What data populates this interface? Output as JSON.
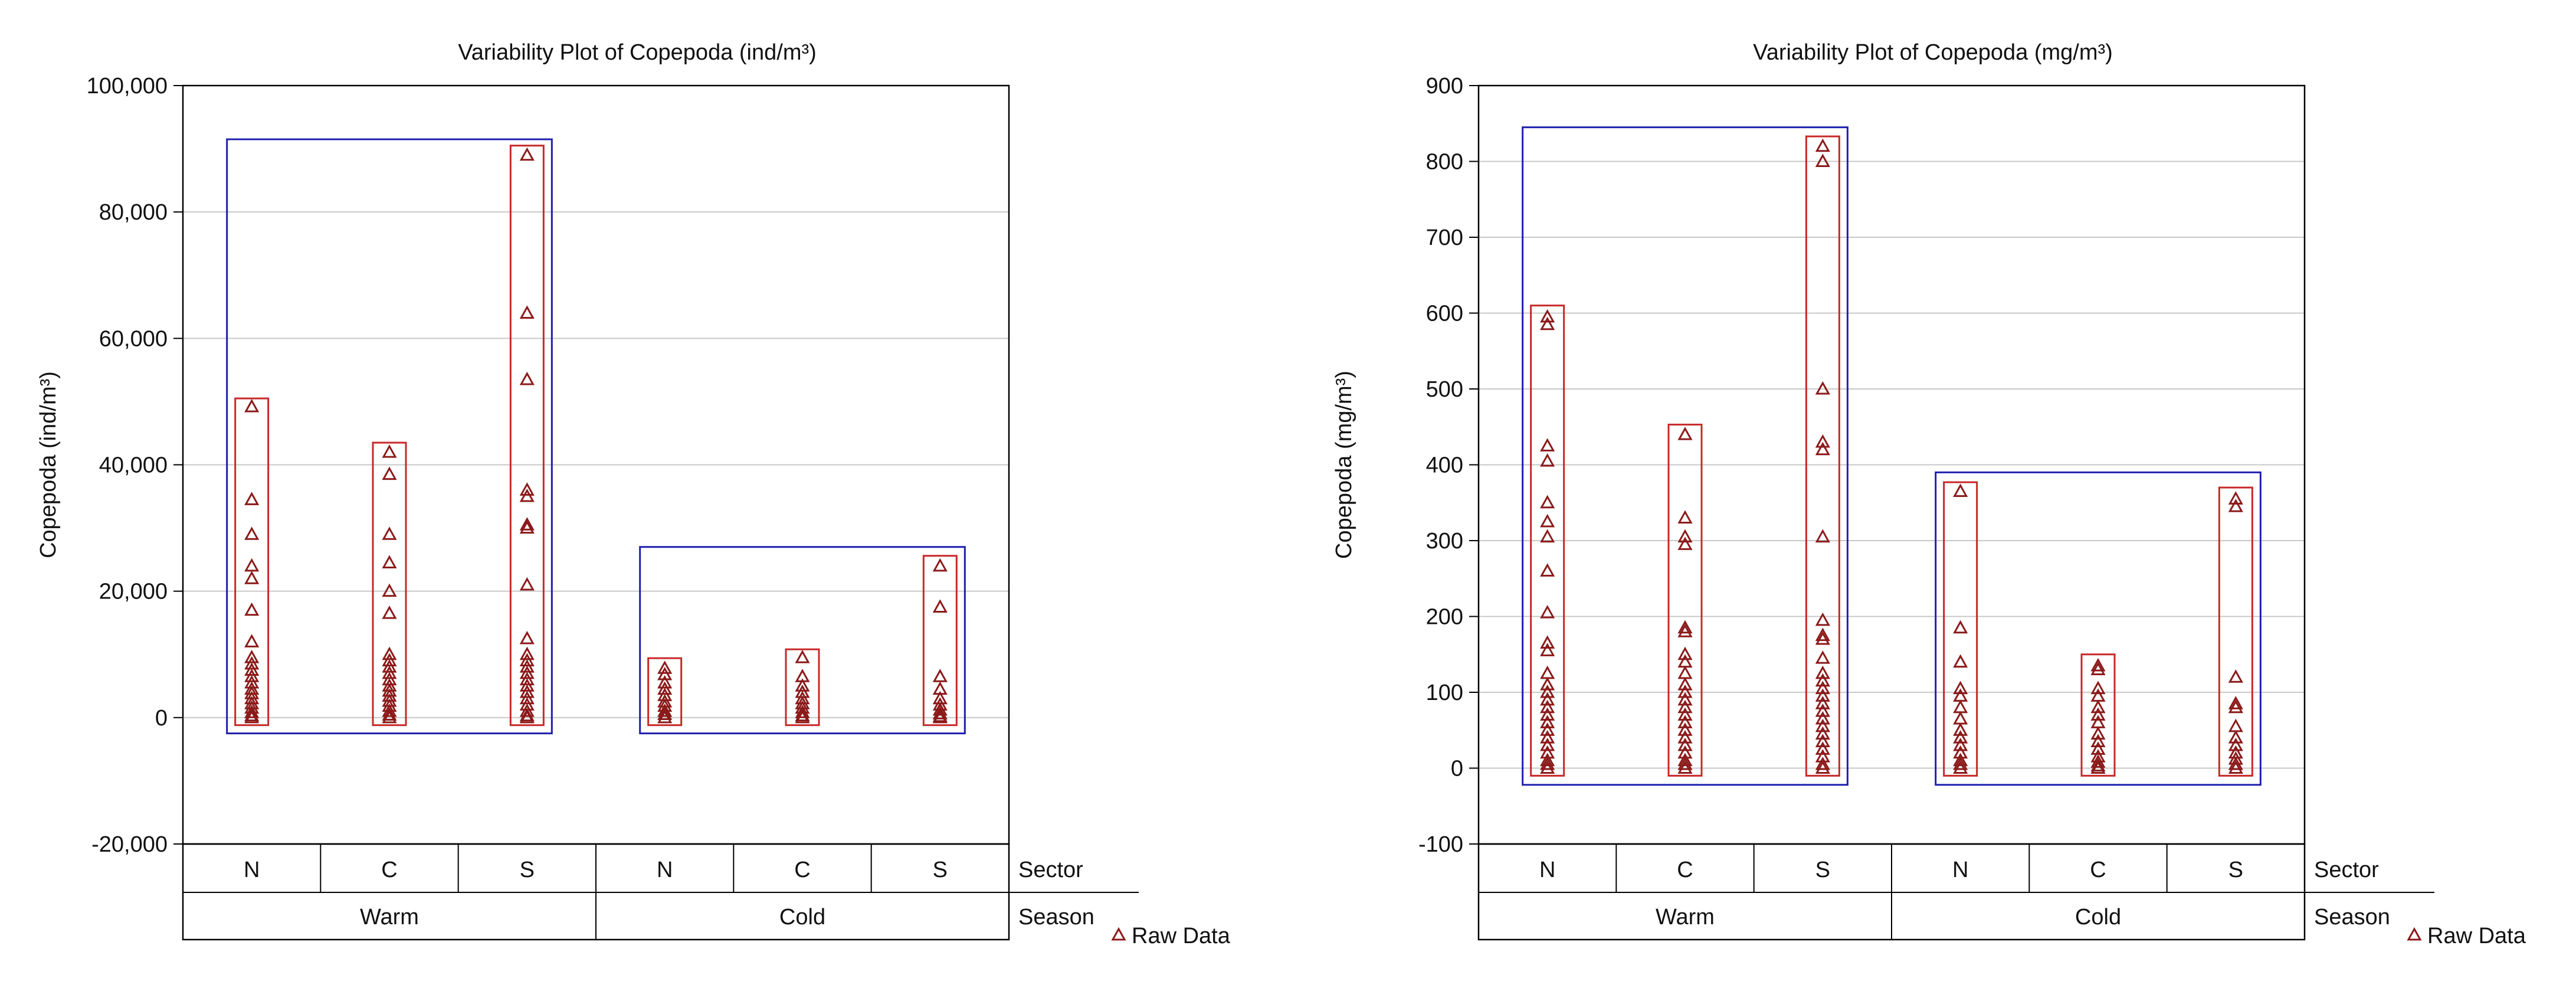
{
  "chart_data": [
    {
      "type": "scatter",
      "title": "Variability Plot of Copepoda  (ind/m³)",
      "ylabel": "Copepoda  (ind/m³)",
      "ylim": [
        -20000,
        100000
      ],
      "yticks": [
        100000,
        80000,
        60000,
        40000,
        20000,
        0,
        -20000
      ],
      "ytick_labels": [
        "100,000",
        "80,000",
        "60,000",
        "40,000",
        "20,000",
        "0",
        "-20,000"
      ],
      "grid": true,
      "legend": {
        "position": "bottom-right",
        "label": "Raw Data"
      },
      "factor_labels": {
        "inner": "Sector",
        "outer": "Season"
      },
      "groups": [
        {
          "season": "Warm",
          "range": [
            -2500,
            91500
          ],
          "sectors": [
            {
              "sector": "N",
              "range": [
                -1200,
                50500
              ],
              "values": [
                49200,
                34500,
                29000,
                24000,
                22000,
                17000,
                12000,
                9500,
                8500,
                7500,
                6500,
                5500,
                4500,
                3800,
                3000,
                2200,
                1500,
                800,
                300,
                0
              ]
            },
            {
              "sector": "C",
              "range": [
                -1200,
                43500
              ],
              "values": [
                42000,
                38500,
                29000,
                24500,
                20000,
                16500,
                10000,
                9000,
                8000,
                7000,
                6000,
                5000,
                4200,
                3400,
                2600,
                1800,
                1000,
                400,
                0
              ]
            },
            {
              "sector": "S",
              "range": [
                -1200,
                90500
              ],
              "values": [
                89000,
                64000,
                53500,
                36000,
                35000,
                30500,
                30000,
                21000,
                12500,
                10000,
                9000,
                8000,
                7000,
                6000,
                5000,
                4000,
                3000,
                2000,
                1000,
                300,
                0
              ]
            }
          ]
        },
        {
          "season": "Cold",
          "range": [
            -2500,
            27000
          ],
          "sectors": [
            {
              "sector": "N",
              "range": [
                -1200,
                9400
              ],
              "values": [
                7800,
                6800,
                5500,
                4500,
                3500,
                2500,
                1800,
                1000,
                500,
                0
              ]
            },
            {
              "sector": "C",
              "range": [
                -1200,
                10800
              ],
              "values": [
                9500,
                6500,
                5000,
                4000,
                3000,
                2200,
                1500,
                800,
                300,
                0
              ]
            },
            {
              "sector": "S",
              "range": [
                -1200,
                25600
              ],
              "values": [
                24000,
                17500,
                6500,
                4500,
                3000,
                2000,
                1200,
                600,
                200,
                0
              ]
            }
          ]
        }
      ]
    },
    {
      "type": "scatter",
      "title": "Variability Plot of Copepoda  (mg/m³)",
      "ylabel": "Copepoda  (mg/m³)",
      "ylim": [
        -100,
        900
      ],
      "yticks": [
        900,
        800,
        700,
        600,
        500,
        400,
        300,
        200,
        100,
        0,
        -100
      ],
      "ytick_labels": [
        "900",
        "800",
        "700",
        "600",
        "500",
        "400",
        "300",
        "200",
        "100",
        "0",
        "-100"
      ],
      "grid": true,
      "legend": {
        "position": "bottom-right",
        "label": "Raw Data"
      },
      "factor_labels": {
        "inner": "Sector",
        "outer": "Season"
      },
      "groups": [
        {
          "season": "Warm",
          "range": [
            -22,
            845
          ],
          "sectors": [
            {
              "sector": "N",
              "range": [
                -10,
                610
              ],
              "values": [
                595,
                585,
                425,
                405,
                350,
                325,
                305,
                260,
                205,
                165,
                155,
                125,
                110,
                100,
                90,
                80,
                70,
                60,
                50,
                40,
                30,
                20,
                10,
                5,
                0
              ]
            },
            {
              "sector": "C",
              "range": [
                -10,
                453
              ],
              "values": [
                440,
                330,
                305,
                295,
                185,
                180,
                150,
                140,
                125,
                110,
                100,
                90,
                80,
                70,
                60,
                50,
                40,
                30,
                20,
                10,
                5,
                0
              ]
            },
            {
              "sector": "S",
              "range": [
                -10,
                833
              ],
              "values": [
                820,
                800,
                500,
                430,
                420,
                305,
                195,
                175,
                170,
                145,
                125,
                115,
                105,
                95,
                85,
                75,
                65,
                55,
                45,
                35,
                25,
                15,
                5,
                0
              ]
            }
          ]
        },
        {
          "season": "Cold",
          "range": [
            -22,
            390
          ],
          "sectors": [
            {
              "sector": "N",
              "range": [
                -10,
                377
              ],
              "values": [
                365,
                185,
                140,
                105,
                95,
                80,
                65,
                50,
                40,
                30,
                20,
                10,
                5,
                0
              ]
            },
            {
              "sector": "C",
              "range": [
                -10,
                150
              ],
              "values": [
                135,
                130,
                105,
                95,
                80,
                70,
                60,
                45,
                35,
                25,
                15,
                8,
                3,
                0
              ]
            },
            {
              "sector": "S",
              "range": [
                -10,
                370
              ],
              "values": [
                355,
                345,
                120,
                85,
                80,
                55,
                40,
                30,
                20,
                12,
                5,
                0
              ]
            }
          ]
        }
      ]
    }
  ]
}
